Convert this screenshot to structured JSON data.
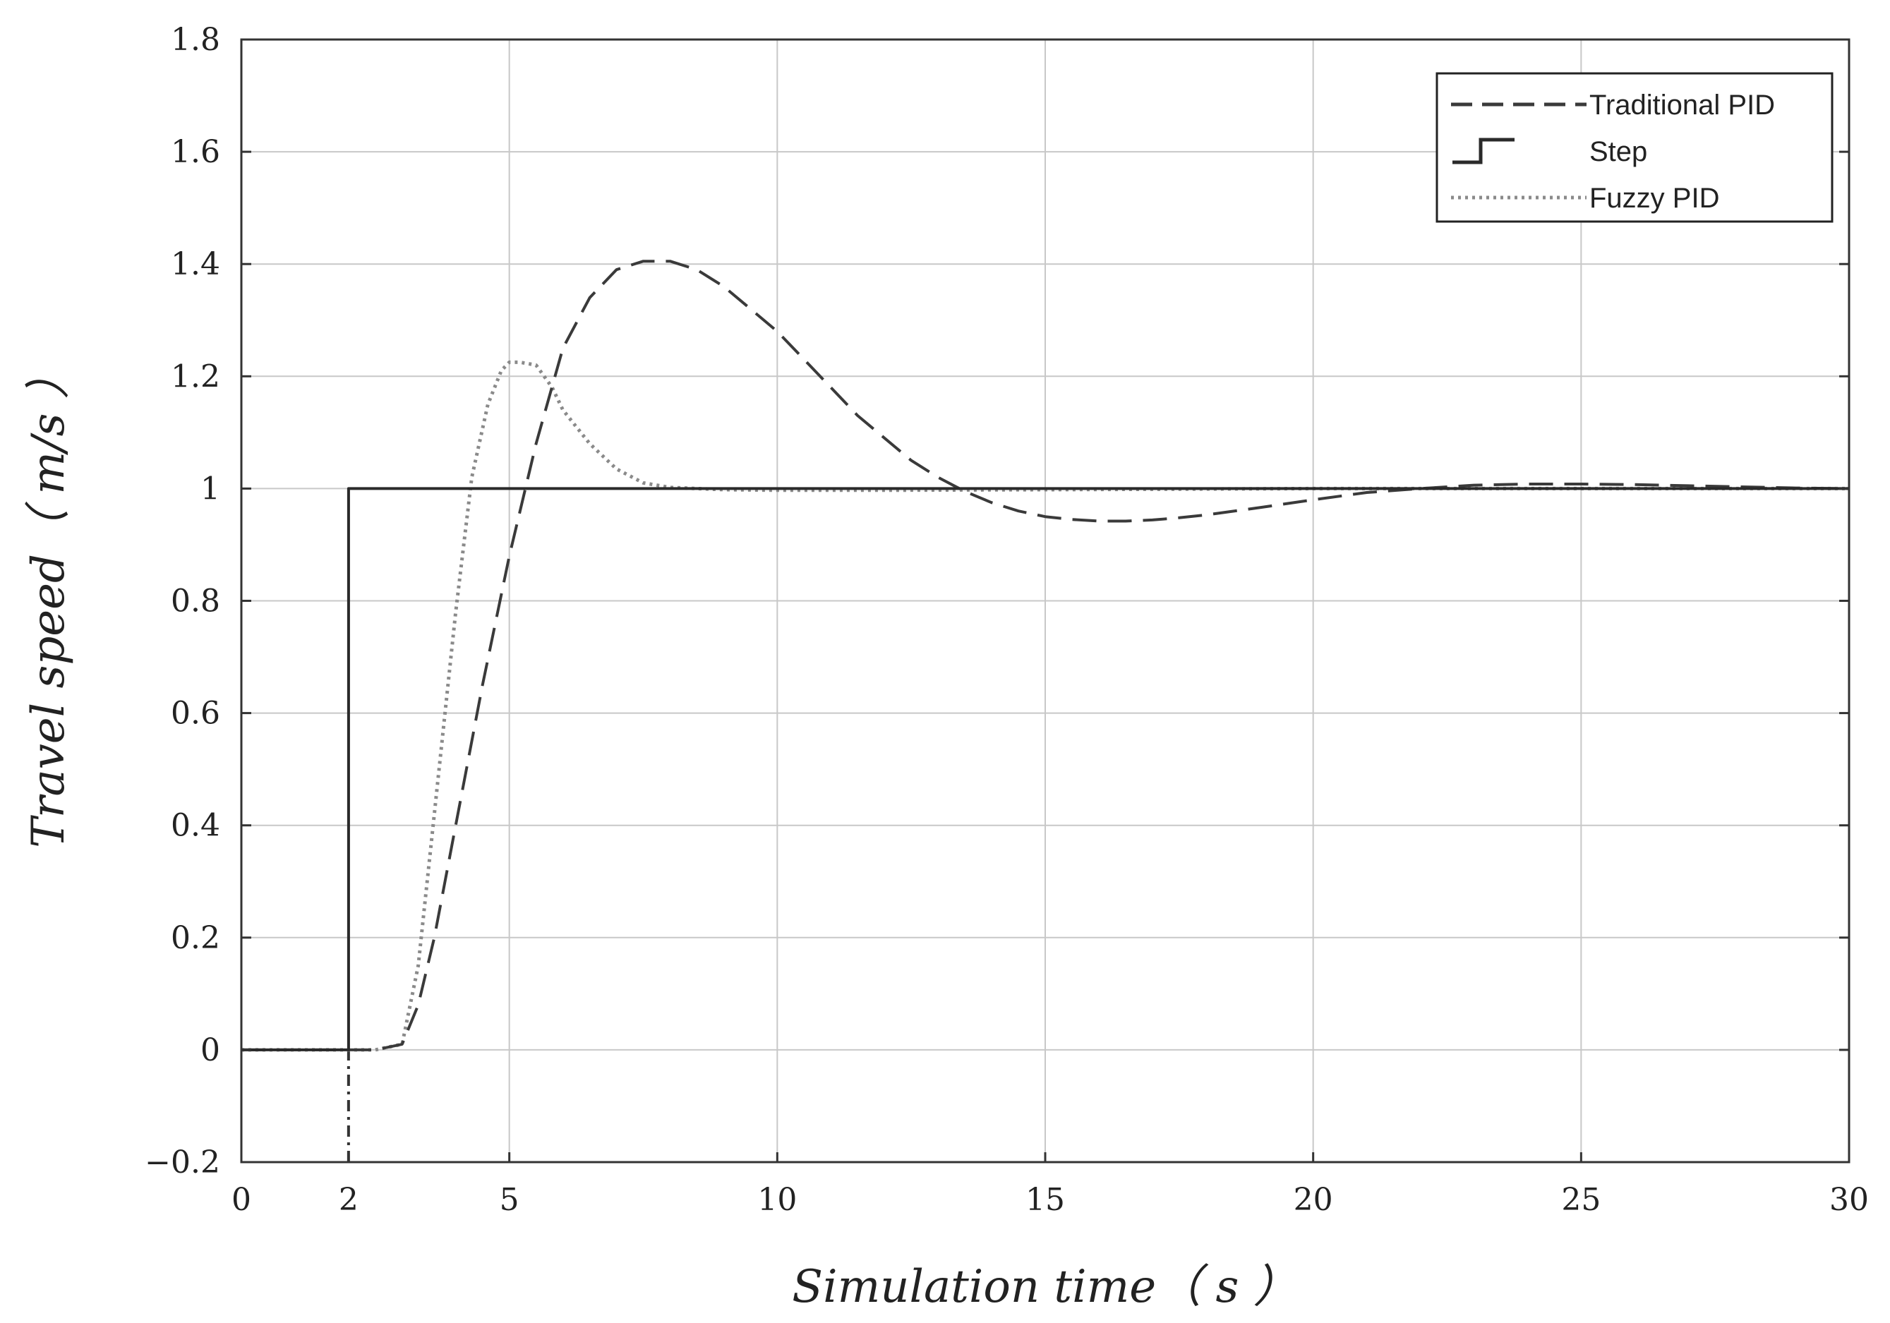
{
  "chart_data": {
    "type": "line",
    "title": "",
    "xlabel": "Simulation time（ s ）",
    "ylabel": "Travel speed（ m/s ）",
    "xlim": [
      0,
      30
    ],
    "ylim": [
      -0.2,
      1.8
    ],
    "xticks": [
      0,
      2,
      5,
      10,
      15,
      20,
      25,
      30
    ],
    "xtick_labels": [
      "0",
      "2",
      "5",
      "10",
      "15",
      "20",
      "25",
      "30"
    ],
    "yticks": [
      -0.2,
      0,
      0.2,
      0.4,
      0.6,
      0.8,
      1,
      1.2,
      1.4,
      1.6,
      1.8
    ],
    "ytick_labels": [
      "−0.2",
      "0",
      "0.2",
      "0.4",
      "0.6",
      "0.8",
      "1",
      "1.2",
      "1.4",
      "1.6",
      "1.8"
    ],
    "xgrid": [
      0,
      5,
      10,
      15,
      20,
      25,
      30
    ],
    "grid": true,
    "legend_position": "top-right",
    "series": [
      {
        "name": "Traditional PID",
        "style": "dashed",
        "color": "#3a3a3a",
        "x": [
          0,
          2,
          2.5,
          3.0,
          3.3,
          3.6,
          4.0,
          4.5,
          5.0,
          5.5,
          6.0,
          6.5,
          7.0,
          7.5,
          8.0,
          8.5,
          9.0,
          9.5,
          10.0,
          10.5,
          11.0,
          11.5,
          12.0,
          12.5,
          13.0,
          13.5,
          14.0,
          14.5,
          15.0,
          15.5,
          16.0,
          16.5,
          17.0,
          17.5,
          18.0,
          19.0,
          20.0,
          21.0,
          22.0,
          23.0,
          24.0,
          25.0,
          26.0,
          27.0,
          28.0,
          29.0,
          30.0
        ],
        "y": [
          0,
          0,
          0,
          0.01,
          0.08,
          0.2,
          0.4,
          0.65,
          0.88,
          1.08,
          1.25,
          1.34,
          1.39,
          1.405,
          1.405,
          1.39,
          1.36,
          1.32,
          1.28,
          1.23,
          1.18,
          1.13,
          1.09,
          1.05,
          1.02,
          0.995,
          0.975,
          0.96,
          0.95,
          0.945,
          0.942,
          0.942,
          0.944,
          0.948,
          0.953,
          0.966,
          0.98,
          0.993,
          1.0,
          1.006,
          1.008,
          1.008,
          1.007,
          1.005,
          1.003,
          1.001,
          1.0
        ]
      },
      {
        "name": "Step",
        "style": "solid",
        "color": "#2a2a2a",
        "x": [
          0,
          2,
          2,
          30
        ],
        "y": [
          0,
          0,
          1,
          1
        ]
      },
      {
        "name": "Fuzzy PID",
        "style": "dotted",
        "color": "#8a8a8a",
        "x": [
          0,
          2,
          2.5,
          3.0,
          3.3,
          3.6,
          4.0,
          4.3,
          4.6,
          4.85,
          5.0,
          5.2,
          5.5,
          5.8,
          6.0,
          6.5,
          7.0,
          7.5,
          8.0,
          8.5,
          9.0,
          10.0,
          12.0,
          15.0,
          20.0,
          25.0,
          30.0
        ],
        "y": [
          0,
          0,
          0,
          0.01,
          0.15,
          0.42,
          0.78,
          1.02,
          1.15,
          1.21,
          1.225,
          1.225,
          1.22,
          1.18,
          1.14,
          1.08,
          1.035,
          1.01,
          1.002,
          1.0,
          0.998,
          0.997,
          0.997,
          0.998,
          1.0,
          1.0,
          1.0
        ]
      }
    ],
    "annotations": [
      {
        "name": "step-time-marker",
        "style": "dash-dot",
        "x": [
          2,
          2
        ],
        "y": [
          -0.2,
          0
        ]
      }
    ]
  }
}
